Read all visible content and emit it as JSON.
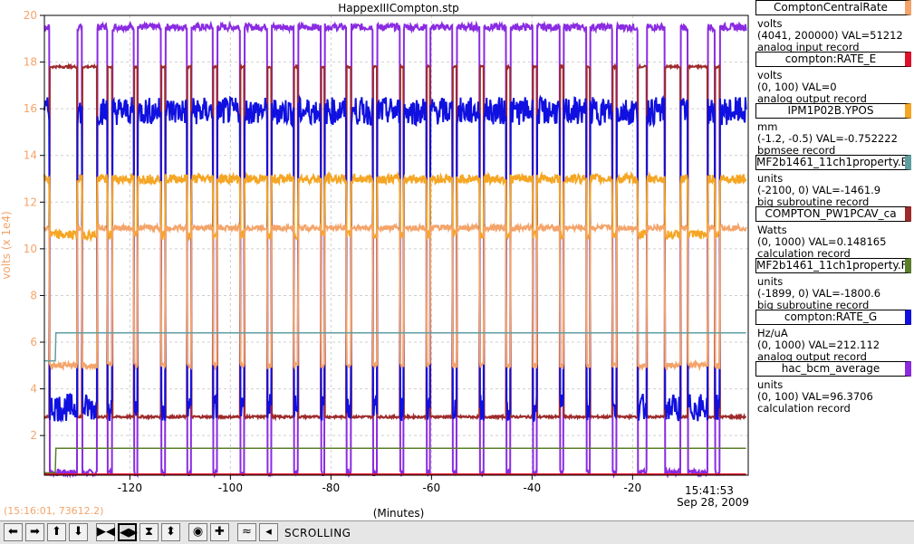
{
  "window_title": "HappexIIICompton.stp",
  "cursor_readout": "(15:16:01, 73612.2)",
  "toolbar": {
    "buttons": [
      {
        "name": "scroll-left-button",
        "glyph": "⬅"
      },
      {
        "name": "scroll-right-button",
        "glyph": "➡"
      },
      {
        "name": "scroll-up-button",
        "glyph": "⬆"
      },
      {
        "name": "scroll-down-button",
        "glyph": "⬇"
      },
      {
        "name": "zoom-in-horizontal-button",
        "glyph": "▶◀"
      },
      {
        "name": "zoom-out-horizontal-button",
        "glyph": "◀▶",
        "active": true
      },
      {
        "name": "zoom-in-vertical-button",
        "glyph": "⧗"
      },
      {
        "name": "zoom-out-vertical-button",
        "glyph": "⬍"
      },
      {
        "name": "autoscale-button",
        "glyph": "◉"
      },
      {
        "name": "crosshair-button",
        "glyph": "✚"
      },
      {
        "name": "stagger-button",
        "glyph": "≈"
      },
      {
        "name": "undo-button",
        "glyph": "◂"
      }
    ],
    "status": "SCROLLING"
  },
  "legend": [
    {
      "name": "ComptonCentralRate",
      "color": "#f4a46a",
      "units": "volts",
      "range": "(4041, 200000)",
      "value": "VAL=51212",
      "record": "analog input record"
    },
    {
      "name": "compton:RATE_E",
      "color": "#e0102a",
      "units": "volts",
      "range": "(0, 100)",
      "value": "VAL=0",
      "record": "analog output record"
    },
    {
      "name": "IPM1P02B.YPOS",
      "color": "#f5a623",
      "units": "mm",
      "range": "(-1.2, -0.5)",
      "value": "VAL=-0.752222",
      "record": "bpmsee record"
    },
    {
      "name": "MF2b1461_11ch1property.E",
      "color": "#5f9ea0",
      "units": "units",
      "range": "(-2100, 0)",
      "value": "VAL=-1461.9",
      "record": "big subroutine record"
    },
    {
      "name": "COMPTON_PW1PCAV_ca",
      "color": "#9e2a2b",
      "units": "Watts",
      "range": "(0, 1000)",
      "value": "VAL=0.148165",
      "record": "calculation record"
    },
    {
      "name": "MF2b1461_11ch1property.F",
      "color": "#5a7d2a",
      "units": "units",
      "range": "(-1899, 0)",
      "value": "VAL=-1800.6",
      "record": "big subroutine record"
    },
    {
      "name": "compton:RATE_G",
      "color": "#1010e0",
      "units": "Hz/uA",
      "range": "(0, 1000)",
      "value": "VAL=212.112",
      "record": "analog output record"
    },
    {
      "name": "hac_bcm_average",
      "color": "#8a2be2",
      "units": "units",
      "range": "(0, 100)",
      "value": "VAL=96.3706",
      "record": "calculation record"
    }
  ],
  "chart_data": {
    "type": "line",
    "title": "HappexIIICompton.stp",
    "xlabel": "(Minutes)",
    "ylabel": "volts (x 1e4)",
    "xlim": [
      -137,
      3
    ],
    "ylim": [
      0.3,
      20
    ],
    "x_ticks": [
      -120,
      -100,
      -80,
      -60,
      -40,
      -20
    ],
    "y_ticks": [
      2,
      4,
      6,
      8,
      10,
      12,
      14,
      16,
      18,
      20
    ],
    "end_time": "15:41:53",
    "end_date": "Sep 28, 2009",
    "grid": true,
    "beam_trips": [
      {
        "from": -136.0,
        "to": -130.5
      },
      {
        "from": -129.5,
        "to": -126.5
      },
      {
        "from": -124.5,
        "to": -123.5
      },
      {
        "from": -119.2,
        "to": -118.4
      },
      {
        "from": -113.8,
        "to": -112.9
      },
      {
        "from": -108.6,
        "to": -107.8
      },
      {
        "from": -103.4,
        "to": -102.6
      },
      {
        "from": -98.0,
        "to": -97.2
      },
      {
        "from": -92.6,
        "to": -91.8
      },
      {
        "from": -87.4,
        "to": -86.5
      },
      {
        "from": -82.0,
        "to": -81.3
      },
      {
        "from": -76.9,
        "to": -76.0
      },
      {
        "from": -71.6,
        "to": -70.8
      },
      {
        "from": -66.3,
        "to": -65.5
      },
      {
        "from": -61.0,
        "to": -60.2
      },
      {
        "from": -55.8,
        "to": -55.0
      },
      {
        "from": -50.4,
        "to": -49.6
      },
      {
        "from": -45.1,
        "to": -44.3
      },
      {
        "from": -39.8,
        "to": -39.0
      },
      {
        "from": -34.5,
        "to": -33.7
      },
      {
        "from": -29.2,
        "to": -28.4
      },
      {
        "from": -24.0,
        "to": -23.2
      },
      {
        "from": -19.0,
        "to": -17.2
      },
      {
        "from": -13.6,
        "to": -10.5
      },
      {
        "from": -9.0,
        "to": -5.0
      },
      {
        "from": -3.6,
        "to": -2.6
      }
    ],
    "series": [
      {
        "name": "hac_bcm_average",
        "color": "#8a2be2",
        "on_level": 19.5,
        "off_level": 0.4,
        "noise": 0.15
      },
      {
        "name": "COMPTON_PW1PCAV_ca",
        "color": "#9e2a2b",
        "on_level": 2.8,
        "off_level": 17.8,
        "noise": 0.05,
        "inverted": true
      },
      {
        "name": "compton:RATE_G",
        "color": "#1010e0",
        "on_level": 15.9,
        "off_level": 3.2,
        "noise": 0.6
      },
      {
        "name": "IPM1P02B.YPOS",
        "color": "#f5a623",
        "on_level": 13.0,
        "off_level": 10.6,
        "noise": 0.2
      },
      {
        "name": "ComptonCentralRate",
        "color": "#f4a46a",
        "on_level": 10.9,
        "off_level": 5.0,
        "noise": 0.12
      },
      {
        "name": "MF2b1461_11ch1property.E",
        "color": "#5f9ea0",
        "constant": 6.4,
        "start": -134.8,
        "before": 5.2
      },
      {
        "name": "MF2b1461_11ch1property.F",
        "color": "#5a7d2a",
        "constant": 1.45,
        "start": -134.8,
        "before": 0.4
      },
      {
        "name": "compton:RATE_E",
        "color": "#e0102a",
        "constant": 0.35
      }
    ]
  }
}
